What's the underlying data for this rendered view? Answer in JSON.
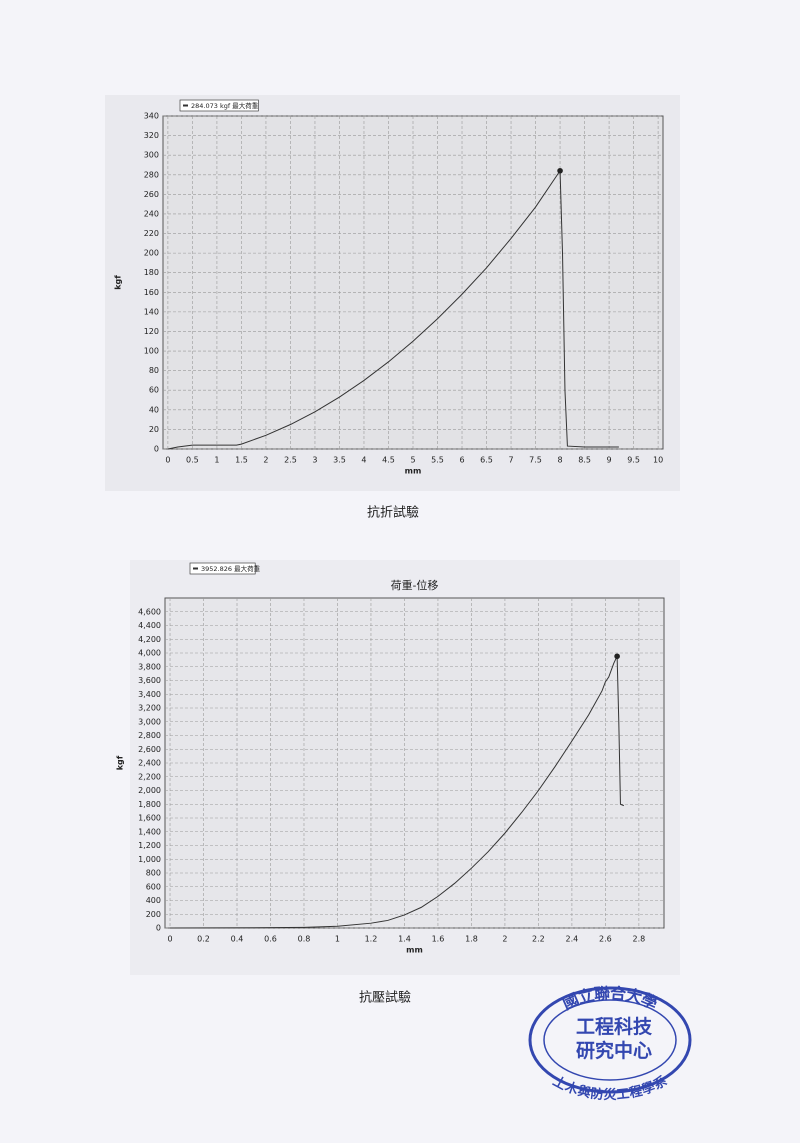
{
  "chart_data": [
    {
      "type": "line",
      "series": [
        {
          "name": "284.073 kgf 最大荷重",
          "color": "#333333",
          "x": [
            0,
            0.2,
            0.5,
            1,
            1.4,
            1.5,
            2,
            2.5,
            3,
            3.5,
            4,
            4.5,
            5,
            5.5,
            6,
            6.5,
            7,
            7.5,
            8,
            8.05,
            8.1,
            8.15,
            8.5,
            9.2
          ],
          "values": [
            0,
            2,
            4,
            4,
            4,
            5,
            14,
            25,
            38,
            53,
            70,
            89,
            110,
            133,
            158,
            185,
            215,
            247,
            284.073,
            200,
            60,
            3,
            2,
            2
          ]
        }
      ],
      "peak": {
        "x": 8,
        "y": 284.073
      },
      "x_label": "mm",
      "y_label": "kgf",
      "xlim": [
        -0.1,
        10.1
      ],
      "xticks": [
        0,
        0.5,
        1,
        1.5,
        2,
        2.5,
        3,
        3.5,
        4,
        4.5,
        5,
        5.5,
        6,
        6.5,
        7,
        7.5,
        8,
        8.5,
        9,
        9.5,
        10
      ],
      "ylim": [
        0,
        340
      ],
      "yticks": [
        0,
        20,
        40,
        60,
        80,
        100,
        120,
        140,
        160,
        180,
        200,
        220,
        240,
        260,
        280,
        300,
        320,
        340
      ],
      "grid": true,
      "caption": "抗折試驗"
    },
    {
      "type": "line",
      "title": "荷重-位移",
      "series": [
        {
          "name": "3952.826 最大荷重",
          "color": "#333333",
          "x": [
            0,
            0.6,
            0.8,
            1,
            1.2,
            1.3,
            1.4,
            1.5,
            1.6,
            1.7,
            1.8,
            1.9,
            2,
            2.1,
            2.2,
            2.3,
            2.4,
            2.5,
            2.58,
            2.6,
            2.62,
            2.65,
            2.67,
            2.68,
            2.69,
            2.71
          ],
          "values": [
            0,
            5,
            10,
            25,
            70,
            110,
            190,
            300,
            460,
            650,
            870,
            1110,
            1380,
            1680,
            2000,
            2350,
            2720,
            3100,
            3450,
            3580,
            3650,
            3850,
            3952.826,
            3000,
            1800,
            1780
          ]
        }
      ],
      "peak": {
        "x": 2.67,
        "y": 3952.826
      },
      "x_label": "mm",
      "y_label": "kgf",
      "xlim": [
        -0.03,
        2.95
      ],
      "xticks": [
        0,
        0.2,
        0.4,
        0.6,
        0.8,
        1,
        1.2,
        1.4,
        1.6,
        1.8,
        2,
        2.2,
        2.4,
        2.6,
        2.8
      ],
      "ylim": [
        0,
        4800
      ],
      "yticks": [
        0,
        200,
        400,
        600,
        800,
        {
          "value": 1000,
          "label": "1,000"
        },
        {
          "value": 1200,
          "label": "1,200"
        },
        {
          "value": 1400,
          "label": "1,400"
        },
        {
          "value": 1600,
          "label": "1,600"
        },
        {
          "value": 1800,
          "label": "1,800"
        },
        {
          "value": 2000,
          "label": "2,000"
        },
        {
          "value": 2200,
          "label": "2,200"
        },
        {
          "value": 2400,
          "label": "2,400"
        },
        {
          "value": 2600,
          "label": "2,600"
        },
        {
          "value": 2800,
          "label": "2,800"
        },
        {
          "value": 3000,
          "label": "3,000"
        },
        {
          "value": 3200,
          "label": "3,200"
        },
        {
          "value": 3400,
          "label": "3,400"
        },
        {
          "value": 3600,
          "label": "3,600"
        },
        {
          "value": 3800,
          "label": "3,800"
        },
        {
          "value": 4000,
          "label": "4,000"
        },
        {
          "value": 4200,
          "label": "4,200"
        },
        {
          "value": 4400,
          "label": "4,400"
        },
        {
          "value": 4600,
          "label": "4,600"
        }
      ],
      "grid": true,
      "caption": "抗壓試驗"
    }
  ],
  "stamp": {
    "top": "國立聯合大學",
    "middle": [
      "工程科技",
      "研究中心"
    ],
    "bottom": "土木與防災工程學系"
  }
}
